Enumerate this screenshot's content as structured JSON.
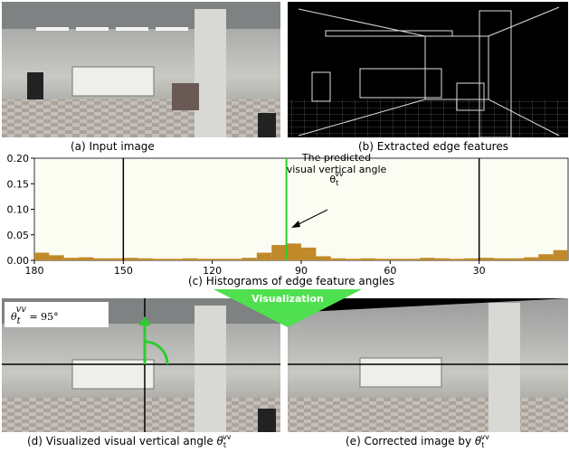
{
  "panels": {
    "a_caption": "(a)   Input image",
    "b_caption": "(b) Extracted edge features",
    "visualization": "Visualization",
    "d_caption": "(d) Visualized visual vertical angle ",
    "e_caption": "(e) Corrected image by ",
    "formula_rest": " = 95°",
    "symbol": {
      "base": "θ",
      "sub": "t",
      "sup": "vv"
    }
  },
  "chart_data": {
    "type": "histogram",
    "caption": "(c) Histograms of edge feature angles",
    "annotation_lines": [
      "The predicted",
      "visual vertical angle"
    ],
    "color": "#c08a2a",
    "bins": [
      0,
      5,
      10,
      15,
      20,
      25,
      30,
      35,
      40,
      45,
      50,
      55,
      60,
      65,
      70,
      75,
      80,
      85,
      90,
      95,
      100,
      105,
      110,
      115,
      120,
      125,
      130,
      135,
      140,
      145,
      150,
      155,
      160,
      165,
      170,
      175,
      180
    ],
    "counts": [
      0.02,
      0.012,
      0.006,
      0.004,
      0.004,
      0.005,
      0.004,
      0.003,
      0.004,
      0.005,
      0.003,
      0.003,
      0.003,
      0.004,
      0.003,
      0.004,
      0.008,
      0.025,
      0.033,
      0.03,
      0.015,
      0.005,
      0.003,
      0.003,
      0.003,
      0.004,
      0.003,
      0.003,
      0.004,
      0.005,
      0.004,
      0.004,
      0.006,
      0.005,
      0.01,
      0.015
    ],
    "xlim": [
      180,
      0
    ],
    "ylim": [
      0,
      0.2
    ],
    "xticks": [
      180,
      150,
      120,
      90,
      60,
      30
    ],
    "yticks": [
      {
        "value": 0,
        "label": "0.00"
      },
      {
        "value": 0.05,
        "label": "0.05"
      },
      {
        "value": 0.1,
        "label": "0.10"
      },
      {
        "value": 0.15,
        "label": "0.15"
      },
      {
        "value": 0.2,
        "label": "0.20"
      }
    ],
    "reference_lines": [
      {
        "x": 150,
        "color": "#000000"
      },
      {
        "x": 30,
        "color": "#000000"
      }
    ],
    "predicted_angle": {
      "x": 95,
      "color": "#2ecc2e"
    }
  }
}
